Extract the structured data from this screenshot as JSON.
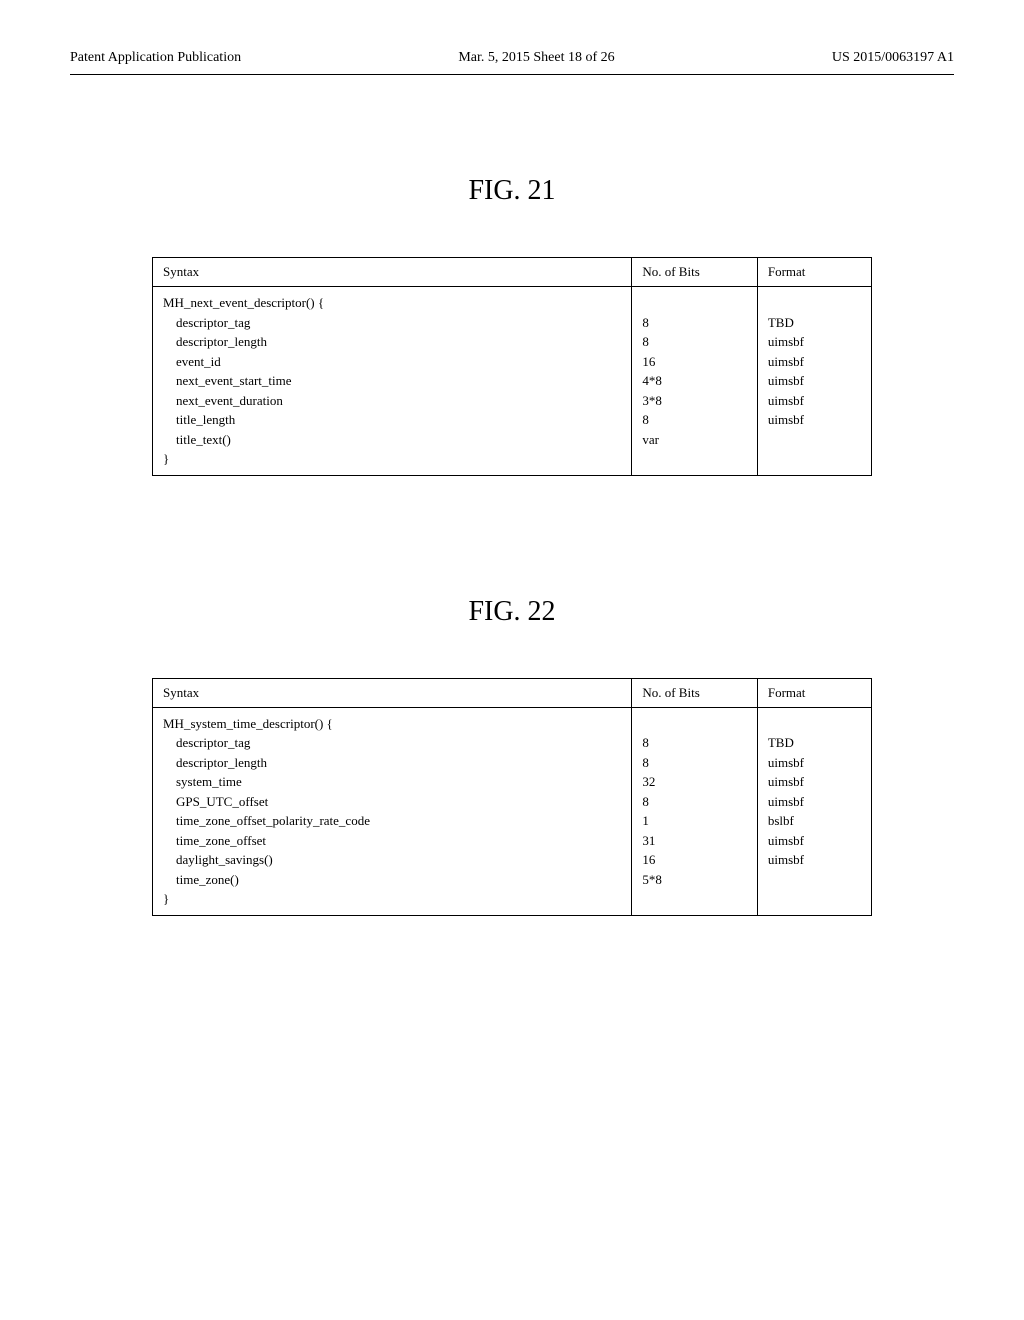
{
  "header": {
    "left": "Patent Application Publication",
    "mid": "Mar. 5, 2015  Sheet 18 of 26",
    "right": "US 2015/0063197 A1"
  },
  "figures": [
    {
      "title": "FIG. 21",
      "columns": {
        "syntax": "Syntax",
        "bits": "No. of Bits",
        "format": "Format"
      },
      "syntax_body": "MH_next_event_descriptor() {\n    descriptor_tag\n    descriptor_length\n    event_id\n    next_event_start_time\n    next_event_duration\n    title_length\n    title_text()\n}",
      "bits_body": "\n8\n8\n16\n4*8\n3*8\n8\nvar\n",
      "format_body": "\nTBD\nuimsbf\nuimsbf\nuimsbf\nuimsbf\nuimsbf\n\n"
    },
    {
      "title": "FIG. 22",
      "columns": {
        "syntax": "Syntax",
        "bits": "No. of Bits",
        "format": "Format"
      },
      "syntax_body": "MH_system_time_descriptor() {\n    descriptor_tag\n    descriptor_length\n    system_time\n    GPS_UTC_offset\n    time_zone_offset_polarity_rate_code\n    time_zone_offset\n    daylight_savings()\n    time_zone()\n}",
      "bits_body": "\n8\n8\n32\n8\n1\n31\n16\n5*8\n",
      "format_body": "\nTBD\nuimsbf\nuimsbf\nuimsbf\nbslbf\nuimsbf\nuimsbf\n\n"
    }
  ]
}
